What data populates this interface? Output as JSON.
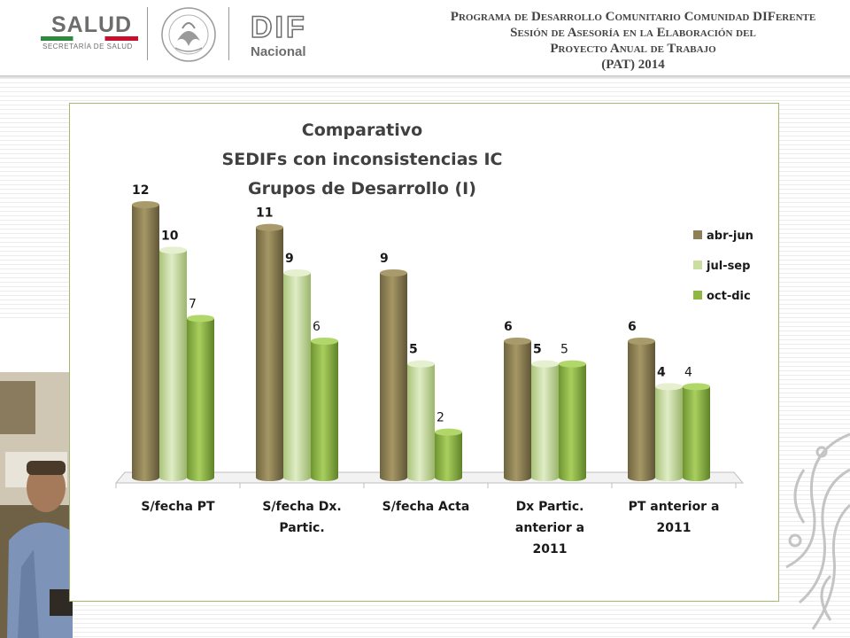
{
  "header": {
    "salud_logo": {
      "word": "SALUD",
      "subtitle": "SECRETARÍA DE SALUD"
    },
    "dif_logo": {
      "word": "DIF",
      "subtitle": "Nacional"
    },
    "program_title_lines": [
      "Programa de Desarrollo Comunitario Comunidad DIFerente",
      "Sesión de Asesoría en la Elaboración del",
      "Proyecto Anual de Trabajo",
      "(PAT) 2014"
    ]
  },
  "colors": {
    "series": [
      "#8d8055",
      "#c9de9f",
      "#8fb842"
    ],
    "chart_border": "#a2b770",
    "title_text": "#404040"
  },
  "chart_data": {
    "type": "bar",
    "title_lines": [
      "Comparativo",
      "SEDIFs con inconsistencias IC",
      "Grupos de Desarrollo (I)"
    ],
    "categories": [
      [
        "S/fecha PT"
      ],
      [
        "S/fecha Dx.",
        "Partic."
      ],
      [
        "S/fecha Acta"
      ],
      [
        "Dx Partic.",
        "anterior a",
        "2011"
      ],
      [
        "PT anterior a",
        "2011"
      ]
    ],
    "series": [
      {
        "name": "abr-jun",
        "values": [
          12,
          11,
          9,
          6,
          6
        ]
      },
      {
        "name": "jul-sep",
        "values": [
          10,
          9,
          5,
          5,
          4
        ]
      },
      {
        "name": "oct-dic",
        "values": [
          7,
          6,
          2,
          5,
          4
        ]
      }
    ],
    "ylim": [
      0,
      12
    ],
    "grid": false,
    "legend_position": "right",
    "style": "3d-cylinder"
  }
}
